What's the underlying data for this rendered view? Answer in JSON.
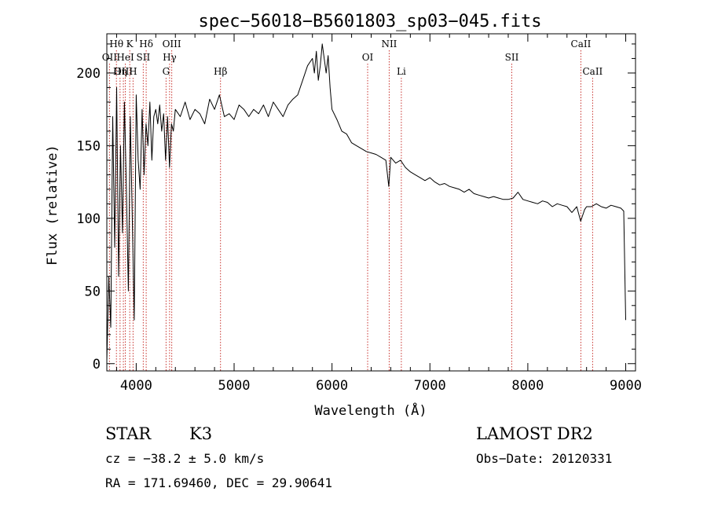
{
  "chart_data": {
    "type": "line",
    "title": "spec−56018−B5601803_sp03−045.fits",
    "xlabel": "Wavelength (Å)",
    "ylabel": "Flux (relative)",
    "xlim": [
      3700,
      9100
    ],
    "ylim": [
      -5,
      227
    ],
    "xticks": [
      4000,
      5000,
      6000,
      7000,
      8000,
      9000
    ],
    "yticks": [
      0,
      50,
      100,
      150,
      200
    ],
    "grid": false,
    "series": [
      {
        "x": [
          3700,
          3720,
          3740,
          3760,
          3780,
          3800,
          3820,
          3840,
          3860,
          3880,
          3900,
          3920,
          3940,
          3960,
          3980,
          4000,
          4020,
          4040,
          4060,
          4080,
          4100,
          4120,
          4140,
          4160,
          4180,
          4200,
          4220,
          4240,
          4260,
          4280,
          4300,
          4320,
          4340,
          4360,
          4380,
          4400,
          4450,
          4500,
          4550,
          4600,
          4650,
          4700,
          4750,
          4800,
          4850,
          4900,
          4950,
          5000,
          5050,
          5100,
          5150,
          5200,
          5250,
          5300,
          5350,
          5400,
          5450,
          5500,
          5550,
          5600,
          5650,
          5700,
          5750,
          5800,
          5820,
          5840,
          5860,
          5880,
          5900,
          5920,
          5940,
          5960,
          5980,
          6000,
          6050,
          6100,
          6150,
          6200,
          6250,
          6300,
          6350,
          6400,
          6450,
          6500,
          6550,
          6580,
          6600,
          6650,
          6700,
          6750,
          6800,
          6850,
          6900,
          6950,
          7000,
          7050,
          7100,
          7150,
          7200,
          7250,
          7300,
          7350,
          7400,
          7450,
          7500,
          7550,
          7600,
          7650,
          7700,
          7750,
          7800,
          7850,
          7900,
          7950,
          8000,
          8050,
          8100,
          8150,
          8200,
          8250,
          8300,
          8350,
          8400,
          8450,
          8500,
          8540,
          8560,
          8580,
          8600,
          8650,
          8700,
          8750,
          8800,
          8850,
          8900,
          8950,
          8980,
          9000
        ],
        "y": [
          2,
          60,
          25,
          170,
          80,
          190,
          60,
          150,
          90,
          180,
          120,
          50,
          170,
          100,
          30,
          185,
          140,
          120,
          175,
          130,
          165,
          150,
          180,
          140,
          170,
          175,
          165,
          178,
          160,
          172,
          140,
          170,
          135,
          165,
          160,
          175,
          170,
          180,
          168,
          175,
          172,
          165,
          182,
          175,
          185,
          170,
          172,
          168,
          178,
          175,
          170,
          175,
          172,
          178,
          170,
          180,
          175,
          170,
          178,
          182,
          185,
          195,
          205,
          210,
          200,
          215,
          195,
          205,
          220,
          210,
          200,
          212,
          190,
          175,
          168,
          160,
          158,
          152,
          150,
          148,
          146,
          145,
          144,
          142,
          140,
          122,
          142,
          138,
          140,
          135,
          132,
          130,
          128,
          126,
          128,
          125,
          123,
          124,
          122,
          121,
          120,
          118,
          120,
          117,
          116,
          115,
          114,
          115,
          114,
          113,
          113,
          114,
          118,
          113,
          112,
          111,
          110,
          112,
          111,
          108,
          110,
          109,
          108,
          104,
          108,
          98,
          102,
          106,
          108,
          108,
          110,
          108,
          107,
          109,
          108,
          107,
          105,
          30
        ]
      }
    ],
    "line_markers": [
      {
        "label": "Hθ",
        "x": 3798,
        "tier": 1
      },
      {
        "label": "K",
        "x": 3934,
        "tier": 1
      },
      {
        "label": "Hδ",
        "x": 4102,
        "tier": 1
      },
      {
        "label": "OIII",
        "x": 4363,
        "tier": 1
      },
      {
        "label": "NII",
        "x": 6584,
        "tier": 1
      },
      {
        "label": "CaII",
        "x": 8542,
        "tier": 1
      },
      {
        "label": "OII",
        "x": 3727,
        "tier": 2
      },
      {
        "label": "HeI",
        "x": 3889,
        "tier": 2
      },
      {
        "label": "SII",
        "x": 4072,
        "tier": 2
      },
      {
        "label": "Hγ",
        "x": 4341,
        "tier": 2
      },
      {
        "label": "OI",
        "x": 6364,
        "tier": 2
      },
      {
        "label": "SII",
        "x": 7836,
        "tier": 2
      },
      {
        "label": "OIII",
        "x": 3869,
        "tier": 3
      },
      {
        "label": "Hη",
        "x": 3835,
        "tier": 3
      },
      {
        "label": "H",
        "x": 3968,
        "tier": 3
      },
      {
        "label": "G",
        "x": 4305,
        "tier": 3
      },
      {
        "label": "Hβ",
        "x": 4861,
        "tier": 3
      },
      {
        "label": "Li",
        "x": 6708,
        "tier": 3
      },
      {
        "label": "CaII",
        "x": 8662,
        "tier": 3
      }
    ]
  },
  "info": {
    "object_class": "STAR",
    "subclass": "K3",
    "survey": "LAMOST DR2",
    "cz": "cz = −38.2 ± 5.0 km/s",
    "obs_date": "Obs−Date: 20120331",
    "radec": "RA = 171.69460, DEC =  29.90641"
  },
  "colors": {
    "spectrum": "#000000",
    "marker": "#c8322d",
    "axes": "#000000"
  }
}
